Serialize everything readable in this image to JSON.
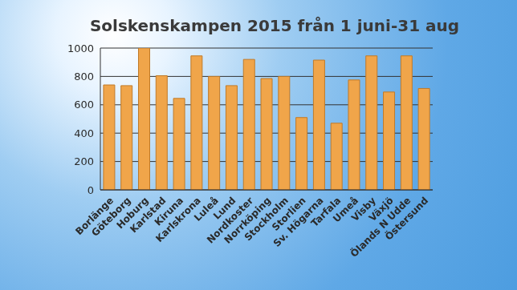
{
  "chart_data": {
    "type": "bar",
    "title": "Solskenskampen 2015 från 1 juni-31 aug",
    "categories": [
      "Borlänge",
      "Göteborg",
      "Hoburg",
      "Karlstad",
      "Kiruna",
      "Karlskrona",
      "Luleå",
      "Lund",
      "Nordkoster",
      "Norrköping",
      "Stockholm",
      "Storlien",
      "Sv. Högarna",
      "Tarfala",
      "Umeå",
      "Visby",
      "Växjö",
      "Ölands N Udde",
      "Östersund"
    ],
    "values": [
      740,
      735,
      1000,
      805,
      645,
      945,
      800,
      735,
      920,
      785,
      800,
      510,
      915,
      470,
      775,
      945,
      690,
      945,
      715
    ],
    "color": "#f0a54a",
    "ylim": [
      0,
      1000
    ],
    "yticks": [
      0,
      200,
      400,
      600,
      800,
      1000
    ],
    "grid": true
  }
}
